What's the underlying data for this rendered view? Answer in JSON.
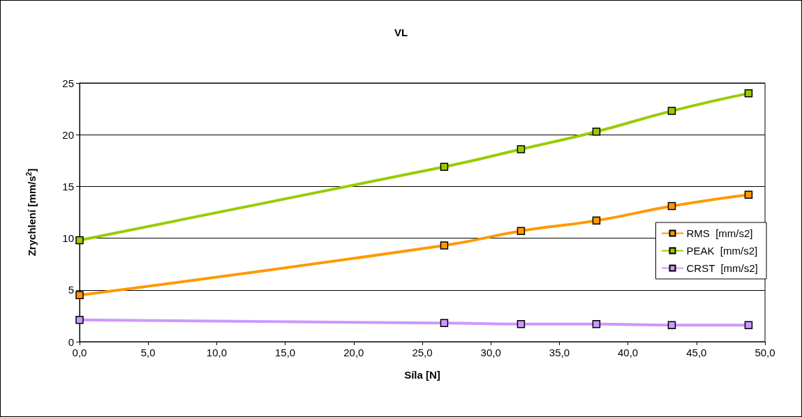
{
  "chart_data": {
    "type": "line",
    "title": "VL",
    "xlabel": "Síla [N]",
    "ylabel": "Zrychlení [mm/s$^{2}$]",
    "x": [
      0,
      26.6,
      32.2,
      37.7,
      43.2,
      48.8
    ],
    "series": [
      {
        "name": "RMS  [mm/s2]",
        "color": "#ff9900",
        "values": [
          4.5,
          9.3,
          10.7,
          11.7,
          13.1,
          14.2
        ]
      },
      {
        "name": "PEAK  [mm/s2]",
        "color": "#99cc00",
        "values": [
          9.8,
          16.9,
          18.6,
          20.3,
          22.3,
          24.0
        ]
      },
      {
        "name": "CRST  [mm/s2]",
        "color": "#cc99ff",
        "values": [
          2.1,
          1.8,
          1.7,
          1.7,
          1.6,
          1.6
        ]
      }
    ],
    "xlim": [
      0,
      50
    ],
    "xticks": [
      {
        "value": 0,
        "label": "0,0"
      },
      {
        "value": 5,
        "label": "5,0"
      },
      {
        "value": 10,
        "label": "10,0"
      },
      {
        "value": 15,
        "label": "15,0"
      },
      {
        "value": 20,
        "label": "20,0"
      },
      {
        "value": 25,
        "label": "25,0"
      },
      {
        "value": 30,
        "label": "30,0"
      },
      {
        "value": 35,
        "label": "35,0"
      },
      {
        "value": 40,
        "label": "40,0"
      },
      {
        "value": 45,
        "label": "45,0"
      },
      {
        "value": 50,
        "label": "50,0"
      }
    ],
    "ylim": [
      0,
      25
    ],
    "yticks": [
      0,
      5,
      10,
      15,
      20,
      25
    ],
    "grid": "y",
    "legend": "right",
    "marker": "square",
    "line_style": "solid"
  }
}
